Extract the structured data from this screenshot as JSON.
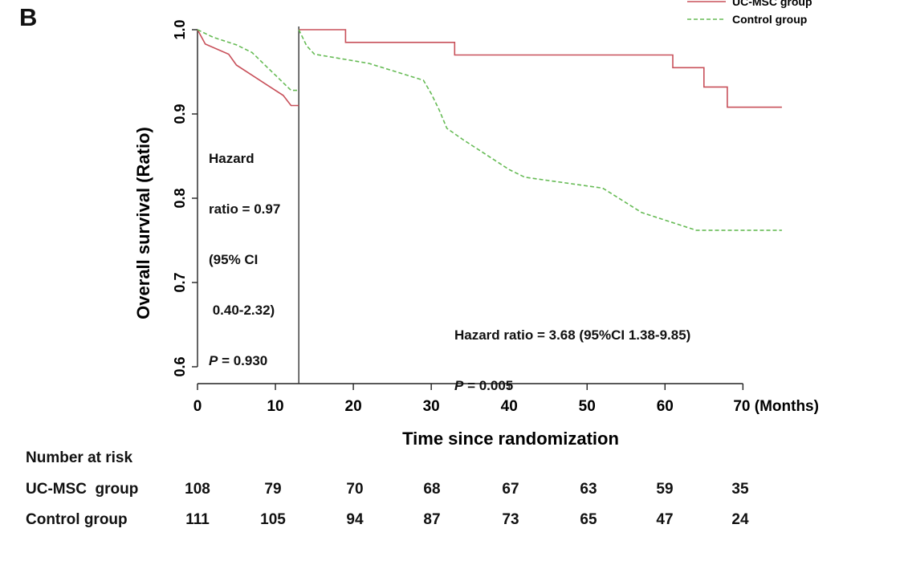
{
  "panel_letter": "B",
  "chart_data": {
    "type": "line",
    "title": "",
    "xlabel": "Time since randomization",
    "ylabel": "Overall survival (Ratio)",
    "xlim": [
      0,
      78
    ],
    "ylim": [
      0.58,
      1.0
    ],
    "x_ticks": [
      0,
      10,
      20,
      30,
      40,
      50,
      60,
      70
    ],
    "x_tick_labels": [
      "0",
      "10",
      "20",
      "30",
      "40",
      "50",
      "60",
      "70 (Months)"
    ],
    "y_ticks": [
      0.6,
      0.7,
      0.8,
      0.9,
      1.0
    ],
    "y_tick_labels": [
      "0.6",
      "0.7",
      "0.8",
      "0.9",
      "1.0"
    ],
    "landmark_x": 13,
    "legend_position": "top-right",
    "grid": false,
    "series": [
      {
        "name": "UC-MSC group",
        "color": "#c8505a",
        "dash": "solid",
        "segment": "before-landmark",
        "points": [
          [
            0,
            1.0
          ],
          [
            1,
            0.983
          ],
          [
            4,
            0.971
          ],
          [
            5,
            0.958
          ],
          [
            7,
            0.946
          ],
          [
            9,
            0.934
          ],
          [
            11,
            0.922
          ],
          [
            12,
            0.91
          ],
          [
            13,
            0.91
          ]
        ]
      },
      {
        "name": "UC-MSC group",
        "color": "#c8505a",
        "dash": "solid",
        "segment": "after-landmark",
        "points": [
          [
            13,
            1.0
          ],
          [
            19,
            1.0
          ],
          [
            19,
            0.985
          ],
          [
            33,
            0.985
          ],
          [
            33,
            0.97
          ],
          [
            61,
            0.97
          ],
          [
            61,
            0.955
          ],
          [
            65,
            0.955
          ],
          [
            65,
            0.932
          ],
          [
            68,
            0.932
          ],
          [
            68,
            0.908
          ],
          [
            75,
            0.908
          ]
        ]
      },
      {
        "name": "Control group",
        "color": "#66bb55",
        "dash": "dashed",
        "segment": "before-landmark",
        "points": [
          [
            0,
            1.0
          ],
          [
            2,
            0.991
          ],
          [
            5,
            0.982
          ],
          [
            7,
            0.973
          ],
          [
            8,
            0.964
          ],
          [
            9,
            0.955
          ],
          [
            10,
            0.946
          ],
          [
            11,
            0.937
          ],
          [
            12,
            0.928
          ],
          [
            13,
            0.928
          ]
        ]
      },
      {
        "name": "Control group",
        "color": "#66bb55",
        "dash": "dashed",
        "segment": "after-landmark",
        "points": [
          [
            13,
            1.0
          ],
          [
            14,
            0.981
          ],
          [
            15,
            0.971
          ],
          [
            22,
            0.96
          ],
          [
            29,
            0.94
          ],
          [
            30,
            0.924
          ],
          [
            31,
            0.905
          ],
          [
            32,
            0.883
          ],
          [
            34,
            0.87
          ],
          [
            36,
            0.858
          ],
          [
            38,
            0.846
          ],
          [
            40,
            0.834
          ],
          [
            42,
            0.825
          ],
          [
            52,
            0.812
          ],
          [
            57,
            0.783
          ],
          [
            64,
            0.762
          ],
          [
            75,
            0.762
          ]
        ]
      }
    ]
  },
  "legend": [
    {
      "label": "UC-MSC group",
      "color": "#c8505a",
      "dash": "solid"
    },
    {
      "label": "Control group",
      "color": "#66bb55",
      "dash": "dashed"
    }
  ],
  "annotations": {
    "left": {
      "lines": [
        "Hazard",
        "ratio = 0.97",
        "(95% CI",
        " 0.40-2.32)"
      ],
      "p_symbol": "P",
      "p_value": " = 0.930"
    },
    "right": {
      "line1": "Hazard ratio = 3.68 (95%CI 1.38-9.85)",
      "p_symbol": "P",
      "p_value": " = 0.005"
    }
  },
  "risk_table": {
    "heading": "Number at risk",
    "times": [
      0,
      10,
      20,
      30,
      40,
      50,
      60,
      70
    ],
    "rows": [
      {
        "label": "UC-MSC  group",
        "values": [
          "108",
          "79",
          "70",
          "68",
          "67",
          "63",
          "59",
          "35"
        ]
      },
      {
        "label": "Control group",
        "values": [
          "111",
          "105",
          "94",
          "87",
          "73",
          "65",
          "47",
          "24"
        ]
      }
    ]
  }
}
